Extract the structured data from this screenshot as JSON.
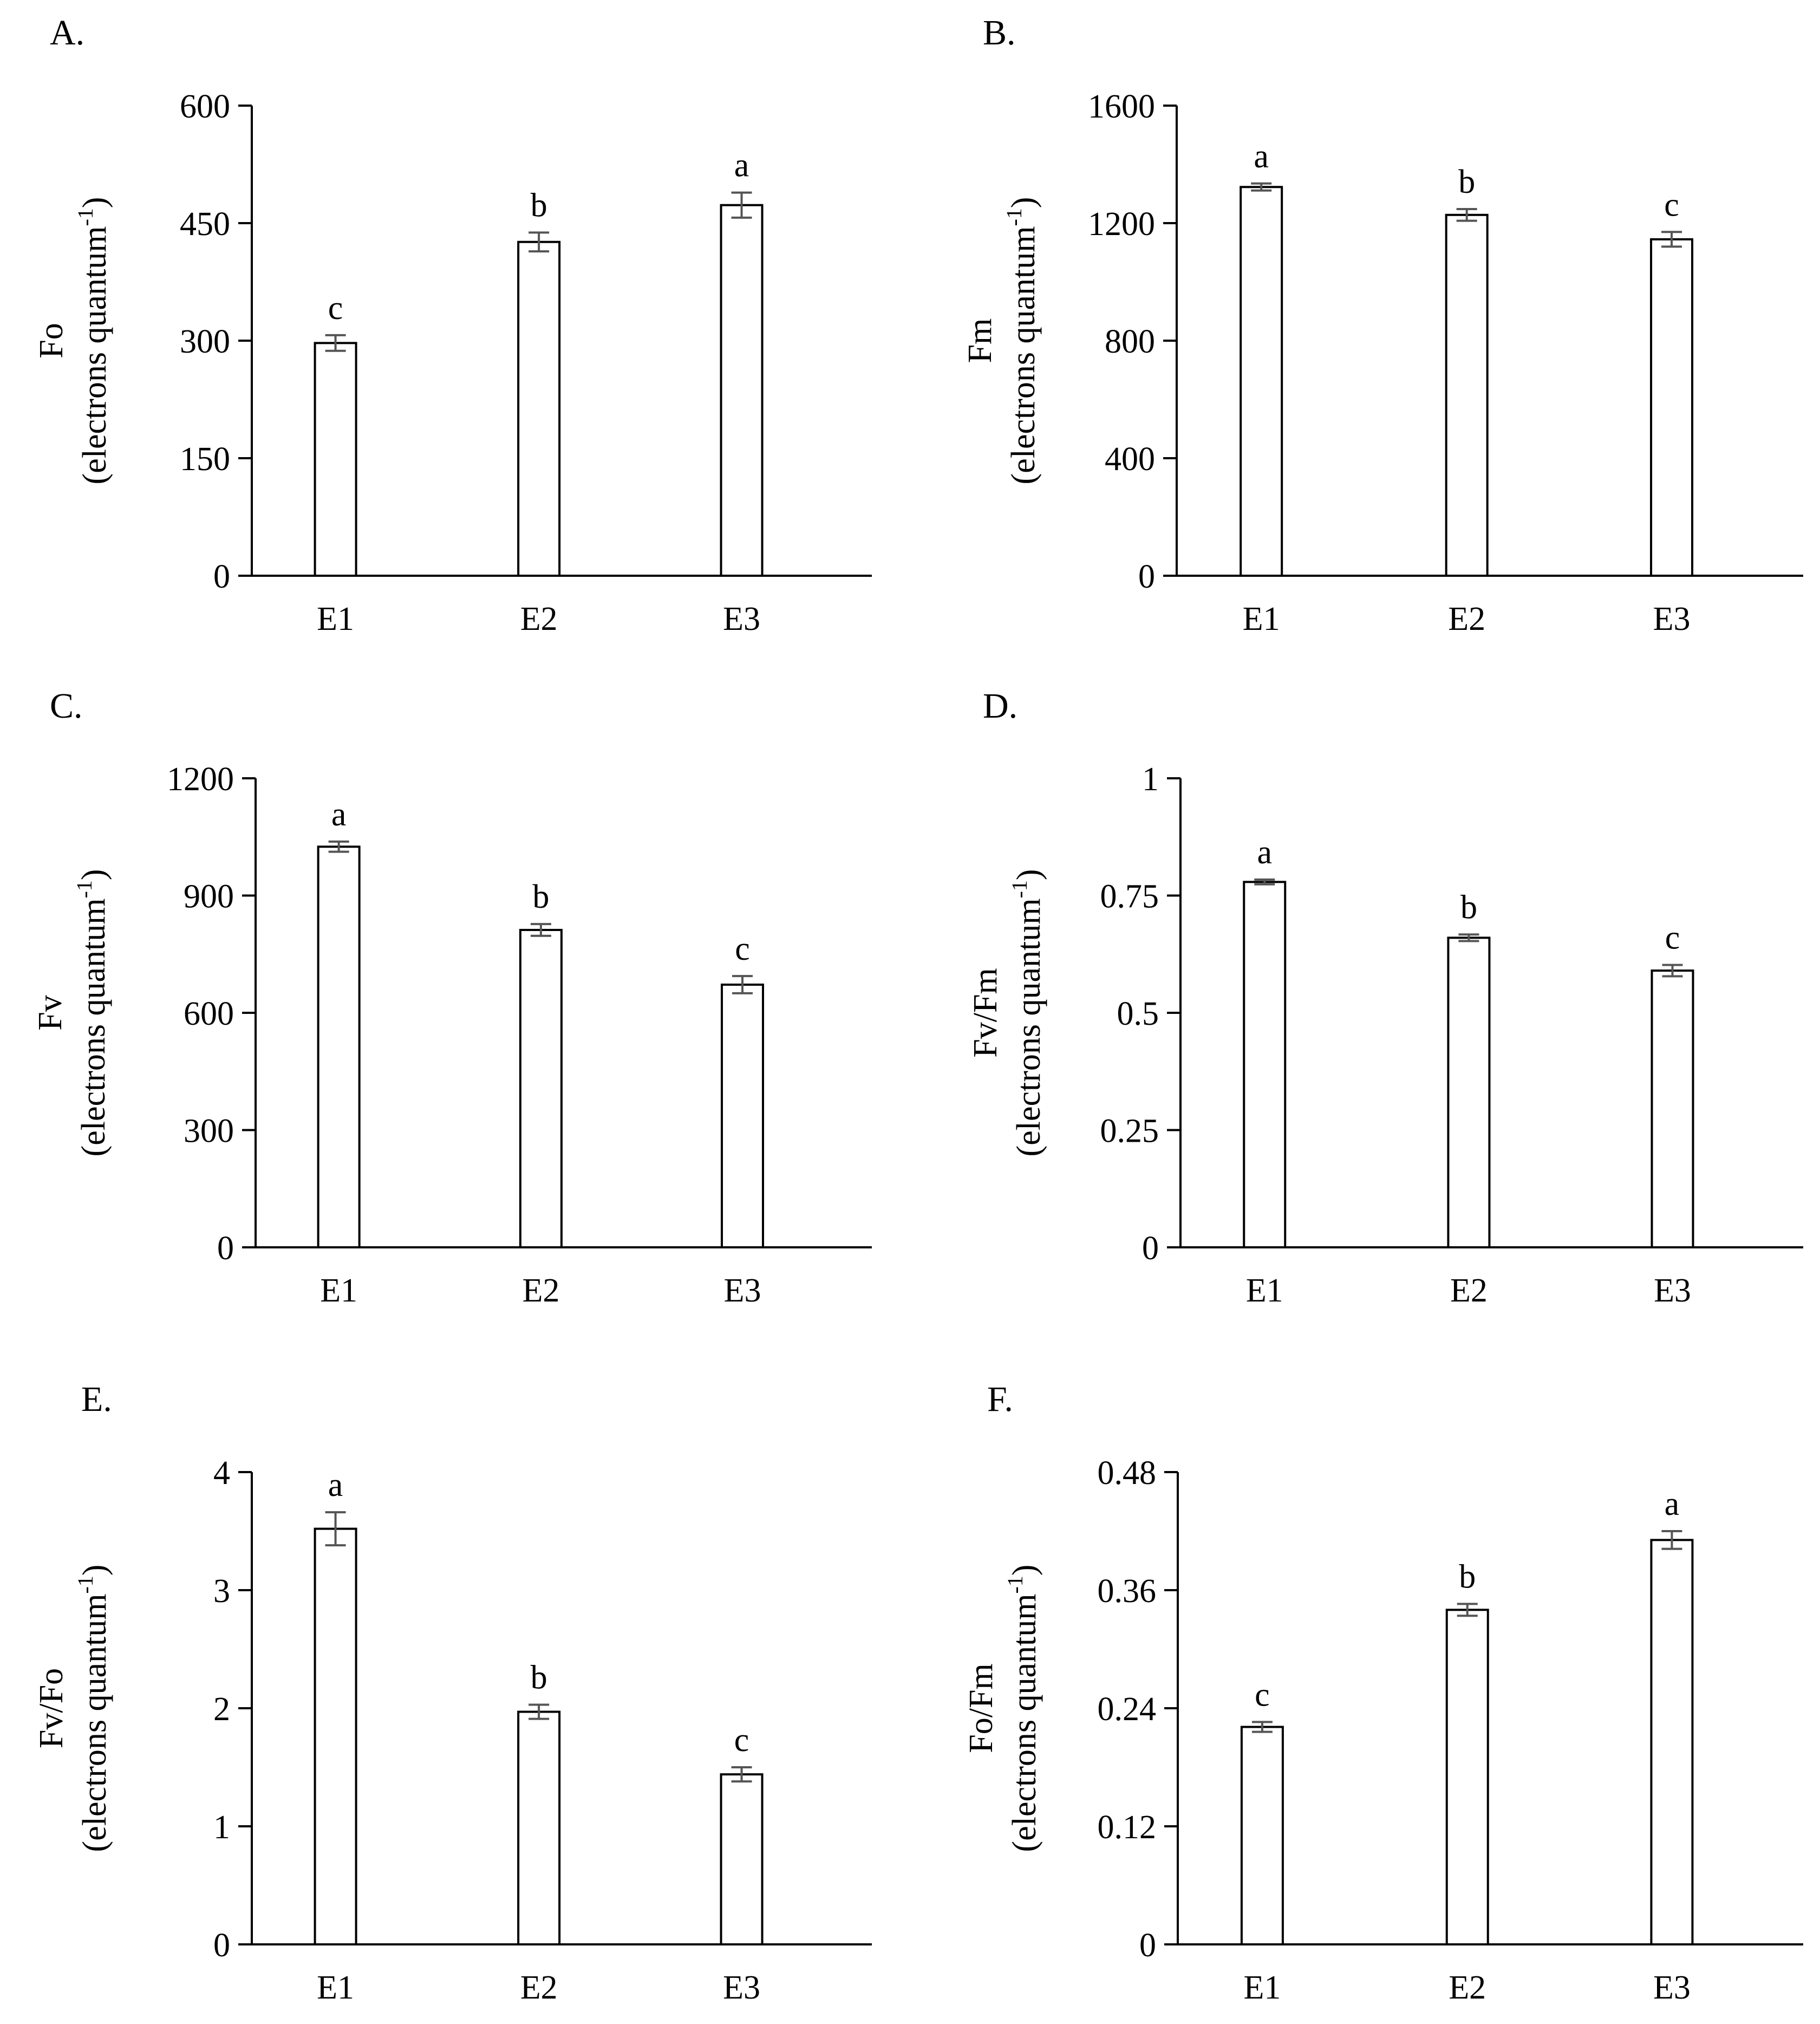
{
  "figure": {
    "panels_count": 6
  },
  "chart_data": [
    {
      "panel_label": "A.",
      "type": "bar",
      "categories": [
        "E1",
        "E2",
        "E3"
      ],
      "values": [
        297,
        426,
        473
      ],
      "errors": [
        10,
        12,
        16
      ],
      "letters": [
        "c",
        "b",
        "a"
      ],
      "ylabel_main": "Fo",
      "ylabel_units": "(electrons quantum",
      "ylabel_sup": "-1",
      "ylabel_close": ")",
      "ylim": [
        0,
        600
      ],
      "yticks": [
        0,
        150,
        300,
        450,
        600
      ],
      "ytick_labels": [
        "0",
        "150",
        "300",
        "450",
        "600"
      ],
      "grid": false,
      "bar_color": "#ffffff",
      "axis_color": "#000000"
    },
    {
      "panel_label": "B.",
      "type": "bar",
      "categories": [
        "E1",
        "E2",
        "E3"
      ],
      "values": [
        1323,
        1228,
        1145
      ],
      "errors": [
        12,
        20,
        25
      ],
      "letters": [
        "a",
        "b",
        "c"
      ],
      "ylabel_main": "Fm",
      "ylabel_units": "(electrons quantum",
      "ylabel_sup": "-1",
      "ylabel_close": ")",
      "ylim": [
        0,
        1600
      ],
      "yticks": [
        0,
        400,
        800,
        1200,
        1600
      ],
      "ytick_labels": [
        "0",
        "400",
        "800",
        "1200",
        "1600"
      ],
      "grid": false,
      "bar_color": "#ffffff",
      "axis_color": "#000000"
    },
    {
      "panel_label": "C.",
      "type": "bar",
      "categories": [
        "E1",
        "E2",
        "E3"
      ],
      "values": [
        1025,
        812,
        672
      ],
      "errors": [
        13,
        15,
        22
      ],
      "letters": [
        "a",
        "b",
        "c"
      ],
      "ylabel_main": "Fv",
      "ylabel_units": "(electrons quantum",
      "ylabel_sup": "-1",
      "ylabel_close": ")",
      "ylim": [
        0,
        1200
      ],
      "yticks": [
        0,
        300,
        600,
        900,
        1200
      ],
      "ytick_labels": [
        "0",
        "300",
        "600",
        "900",
        "1200"
      ],
      "grid": false,
      "bar_color": "#ffffff",
      "axis_color": "#000000"
    },
    {
      "panel_label": "D.",
      "type": "bar",
      "categories": [
        "E1",
        "E2",
        "E3"
      ],
      "values": [
        0.779,
        0.66,
        0.59
      ],
      "errors": [
        0.005,
        0.007,
        0.012
      ],
      "letters": [
        "a",
        "b",
        "c"
      ],
      "ylabel_main": "Fv/Fm",
      "ylabel_units": "(electrons quantum",
      "ylabel_sup": "-1",
      "ylabel_close": ")",
      "ylim": [
        0,
        1
      ],
      "yticks": [
        0,
        0.25,
        0.5,
        0.75,
        1
      ],
      "ytick_labels": [
        "0",
        "0.25",
        "0.5",
        "0.75",
        "1"
      ],
      "grid": false,
      "bar_color": "#ffffff",
      "axis_color": "#000000"
    },
    {
      "panel_label": "E.",
      "type": "bar",
      "categories": [
        "E1",
        "E2",
        "E3"
      ],
      "values": [
        3.52,
        1.97,
        1.44
      ],
      "errors": [
        0.14,
        0.06,
        0.06
      ],
      "letters": [
        "a",
        "b",
        "c"
      ],
      "ylabel_main": "Fv/Fo",
      "ylabel_units": "(electrons quantum",
      "ylabel_sup": "-1",
      "ylabel_close": ")",
      "ylim": [
        0,
        4
      ],
      "yticks": [
        0,
        1,
        2,
        3,
        4
      ],
      "ytick_labels": [
        "0",
        "1",
        "2",
        "3",
        "4"
      ],
      "grid": false,
      "bar_color": "#ffffff",
      "axis_color": "#000000"
    },
    {
      "panel_label": "F.",
      "type": "bar",
      "categories": [
        "E1",
        "E2",
        "E3"
      ],
      "values": [
        0.221,
        0.34,
        0.411
      ],
      "errors": [
        0.005,
        0.006,
        0.009
      ],
      "letters": [
        "c",
        "b",
        "a"
      ],
      "ylabel_main": "Fo/Fm",
      "ylabel_units": "(electrons quantum",
      "ylabel_sup": "-1",
      "ylabel_close": ")",
      "ylim": [
        0,
        0.48
      ],
      "yticks": [
        0,
        0.12,
        0.24,
        0.36,
        0.48
      ],
      "ytick_labels": [
        "0",
        "0.12",
        "0.24",
        "0.36",
        "0.48"
      ],
      "grid": false,
      "bar_color": "#ffffff",
      "axis_color": "#000000"
    }
  ]
}
